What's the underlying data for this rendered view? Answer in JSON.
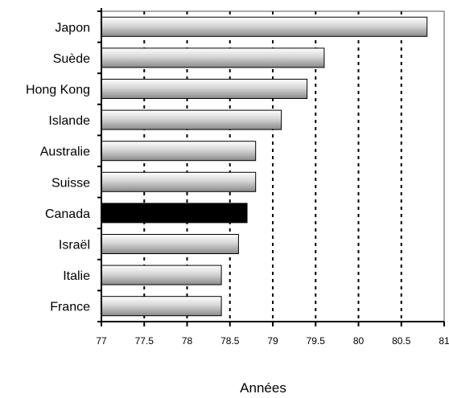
{
  "chart_data": {
    "type": "bar",
    "orientation": "horizontal",
    "categories": [
      "Japon",
      "Suède",
      "Hong Kong",
      "Islande",
      "Australie",
      "Suisse",
      "Canada",
      "Israël",
      "Italie",
      "France"
    ],
    "values": [
      80.8,
      79.6,
      79.4,
      79.1,
      78.8,
      78.8,
      78.7,
      78.6,
      78.4,
      78.4
    ],
    "highlight": "Canada",
    "colors": {
      "bar_fill_top": "#ffffff",
      "bar_fill_mid": "#d6d6d6",
      "bar_fill_bottom": "#8a8a8a",
      "highlight_fill": "#000000",
      "grid": "#000000"
    },
    "xlabel": "Années",
    "xlim": [
      77,
      81
    ],
    "xticks": [
      77,
      77.5,
      78,
      78.5,
      79,
      79.5,
      80,
      80.5,
      81
    ],
    "xtick_labels": [
      "77",
      "77.5",
      "78",
      "78.5",
      "79",
      "79.5",
      "80",
      "80.5",
      "81"
    ],
    "grid": "vertical-dashed"
  }
}
